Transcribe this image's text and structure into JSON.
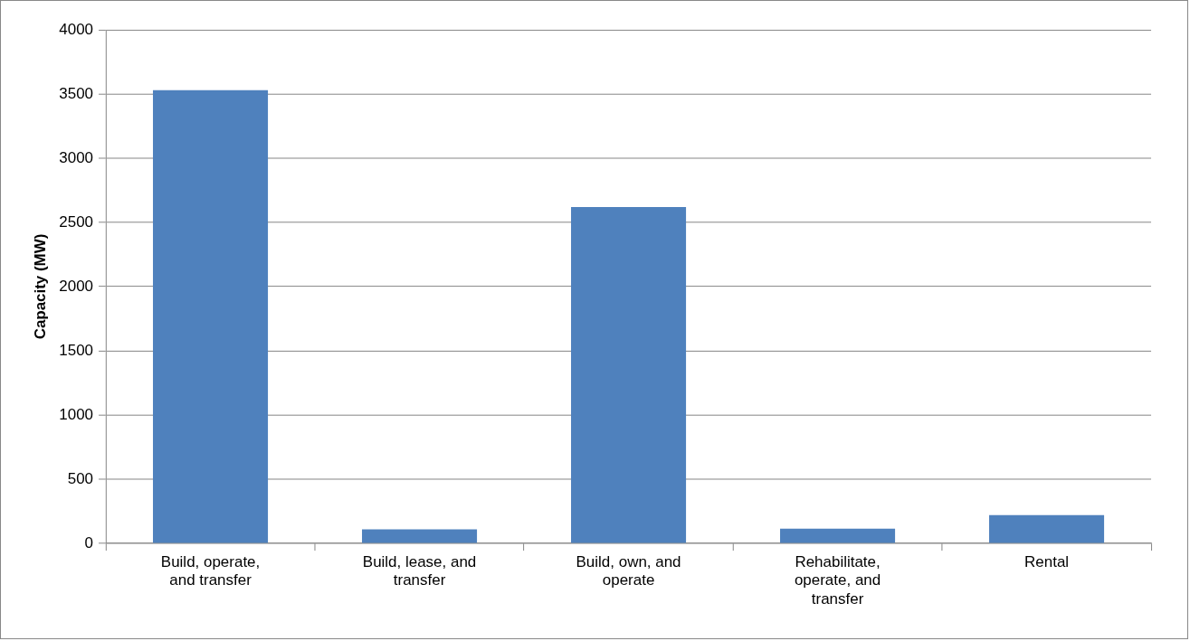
{
  "chart_data": {
    "type": "bar",
    "ylabel": "Capacity (MW)",
    "categories": [
      "Build, operate, and transfer",
      "Build, lease, and transfer",
      "Build, own, and operate",
      "Rehabilitate, operate, and transfer",
      "Rental"
    ],
    "values": [
      3530,
      110,
      2620,
      115,
      220
    ],
    "color": "#4f81bd",
    "ylim": [
      0,
      4000
    ],
    "yticks": [
      0,
      500,
      1000,
      1500,
      2000,
      2500,
      3000,
      3500,
      4000
    ],
    "grid": "y",
    "legend": false
  }
}
